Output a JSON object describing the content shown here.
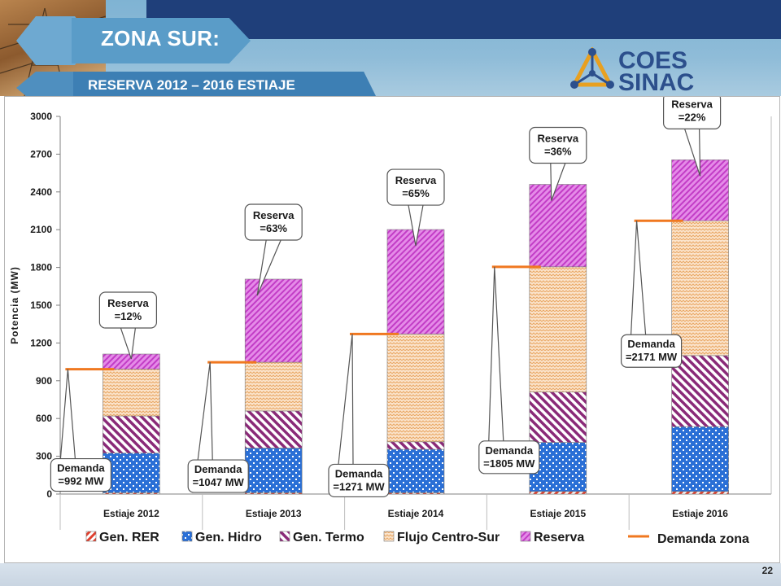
{
  "header": {
    "title": "ZONA SUR:",
    "subtitle": "RESERVA 2012 – 2016 ESTIAJE",
    "logo_line1": "COES",
    "logo_line2": "SINAC"
  },
  "footer": {
    "page_number": "22"
  },
  "colors": {
    "rer": "#e0402e",
    "hidro": "#2a6fd6",
    "termo": "#8a2a78",
    "flujo": "#e9a866",
    "reserva": "#c23cc6",
    "demanda": "#f07820"
  },
  "chart_data": {
    "type": "bar",
    "stacked": true,
    "ylabel": "Potencia (MW)",
    "ylim": [
      0,
      3000
    ],
    "yticks": [
      0,
      300,
      600,
      900,
      1200,
      1500,
      1800,
      2100,
      2400,
      2700,
      3000
    ],
    "grid": "vertical separators",
    "legend_position": "bottom",
    "categories": [
      "Estiaje 2012",
      "Estiaje 2013",
      "Estiaje 2014",
      "Estiaje 2015",
      "Estiaje 2016"
    ],
    "series": [
      {
        "key": "rer",
        "name": "Gen. RER",
        "values": [
          10,
          10,
          10,
          20,
          20
        ]
      },
      {
        "key": "hidro",
        "name": "Gen. Hidro",
        "values": [
          315,
          355,
          345,
          390,
          515
        ]
      },
      {
        "key": "termo",
        "name": "Gen. Termo",
        "values": [
          295,
          295,
          60,
          400,
          565
        ]
      },
      {
        "key": "flujo",
        "name": "Flujo Centro-Sur",
        "values": [
          372,
          387,
          856,
          995,
          1071
        ]
      },
      {
        "key": "reserva",
        "name": "Reserva",
        "values": [
          120,
          660,
          830,
          655,
          484
        ]
      }
    ],
    "demanda": {
      "name": "Demanda zona",
      "values": [
        992,
        1047,
        1271,
        1805,
        2171
      ],
      "labels": [
        "Demanda\n=992 MW",
        "Demanda\n=1047 MW",
        "Demanda\n=1271 MW",
        "Demanda\n=1805 MW",
        "Demanda\n=2171 MW"
      ]
    },
    "reserva_labels": [
      "Reserva\n=12%",
      "Reserva\n=63%",
      "Reserva\n=65%",
      "Reserva\n=36%",
      "Reserva\n=22%"
    ]
  }
}
